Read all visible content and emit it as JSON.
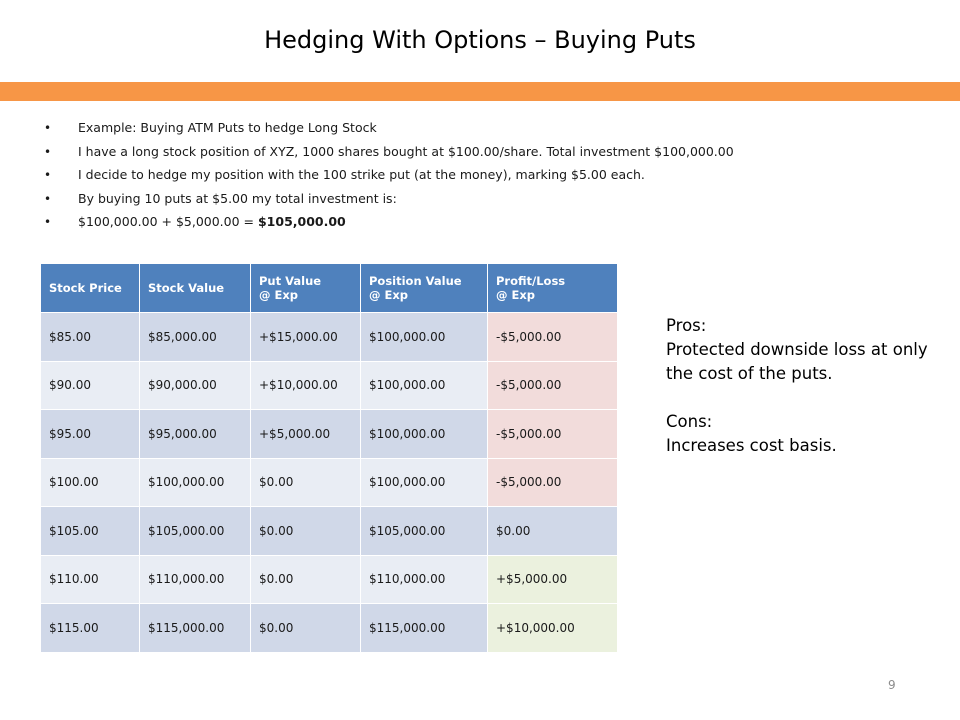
{
  "slide": {
    "title": "Hedging With Options – Buying Puts",
    "page_number": "9",
    "accent_color": "#f79646"
  },
  "bullets": [
    "Example:  Buying ATM Puts to hedge Long Stock",
    "I have a long stock position of XYZ, 1000 shares bought at $100.00/share.  Total investment $100,000.00",
    "I decide to hedge my position with the 100 strike put (at the money), marking $5.00 each.",
    "By buying 10 puts at $5.00 my total investment is:",
    "$100,000.00 + $5,000.00 = "
  ],
  "total_bold": "$105,000.00",
  "table": {
    "headers": [
      [
        "Stock Price",
        ""
      ],
      [
        "Stock Value",
        ""
      ],
      [
        "Put Value",
        "@ Exp"
      ],
      [
        "Position Value",
        "@ Exp"
      ],
      [
        "Profit/Loss",
        "@ Exp"
      ]
    ],
    "rows": [
      [
        "$85.00",
        "$85,000.00",
        "+$15,000.00",
        "$100,000.00",
        "-$5,000.00"
      ],
      [
        "$90.00",
        "$90,000.00",
        "+$10,000.00",
        "$100,000.00",
        "-$5,000.00"
      ],
      [
        "$95.00",
        "$95,000.00",
        "+$5,000.00",
        "$100,000.00",
        "-$5,000.00"
      ],
      [
        "$100.00",
        "$100,000.00",
        "$0.00",
        "$100,000.00",
        "-$5,000.00"
      ],
      [
        "$105.00",
        "$105,000.00",
        "$0.00",
        "$105,000.00",
        "$0.00"
      ],
      [
        "$110.00",
        "$110,000.00",
        "$0.00",
        "$110,000.00",
        "+$5,000.00"
      ],
      [
        "$115.00",
        "$115,000.00",
        "$0.00",
        "$115,000.00",
        "+$10,000.00"
      ]
    ],
    "colors": {
      "header": "#4f81bd",
      "loss": "#f2dcdb",
      "even": "#d0d8e8",
      "gain": "#ebf1de"
    }
  },
  "side": {
    "pros_label": "Pros:",
    "pros_text": "Protected downside loss at only the cost of the puts.",
    "cons_label": "Cons:",
    "cons_text": "Increases cost basis."
  }
}
